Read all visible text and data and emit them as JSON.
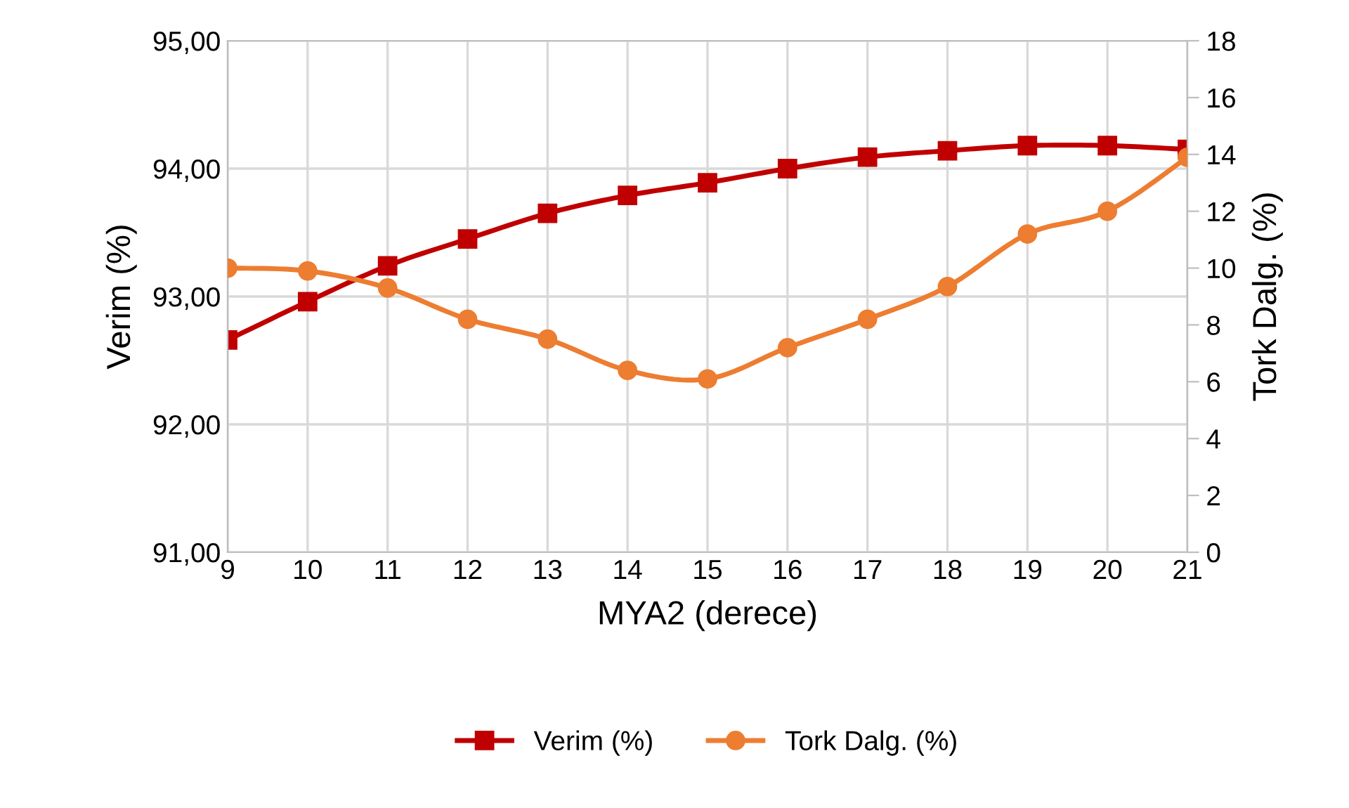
{
  "chart_data": {
    "type": "line",
    "xlabel": "MYA2 (derece)",
    "ylabel": "Verim (%)",
    "y2label": "Tork Dalg. (%)",
    "x": [
      9,
      10,
      11,
      12,
      13,
      14,
      15,
      16,
      17,
      18,
      19,
      20,
      21
    ],
    "series": [
      {
        "name": "Verim (%)",
        "color": "#c00000",
        "marker": "square",
        "values": [
          92.66,
          92.96,
          93.24,
          93.45,
          93.65,
          93.79,
          93.89,
          94.0,
          94.09,
          94.14,
          94.18,
          94.18,
          94.15
        ]
      },
      {
        "name": "Tork Dalg. (%)",
        "color": "#ed7d31",
        "marker": "circle",
        "axis": "y2",
        "values": [
          10.0,
          9.9,
          9.3,
          8.2,
          7.5,
          6.4,
          6.1,
          7.2,
          8.2,
          9.35,
          11.2,
          12.0,
          13.9
        ]
      }
    ],
    "xlim": [
      9,
      21
    ],
    "xticks": [
      9,
      10,
      11,
      12,
      13,
      14,
      15,
      16,
      17,
      18,
      19,
      20,
      21
    ],
    "ylim": [
      91,
      95
    ],
    "yticks": [
      {
        "value": 91,
        "label": "91,00"
      },
      {
        "value": 92,
        "label": "92,00"
      },
      {
        "value": 93,
        "label": "93,00"
      },
      {
        "value": 94,
        "label": "94,00"
      },
      {
        "value": 95,
        "label": "95,00"
      }
    ],
    "y2lim": [
      0,
      18
    ],
    "y2ticks": [
      0,
      2,
      4,
      6,
      8,
      10,
      12,
      14,
      16,
      18
    ],
    "grid": true,
    "legend": "bottom",
    "line_style": "solid"
  }
}
